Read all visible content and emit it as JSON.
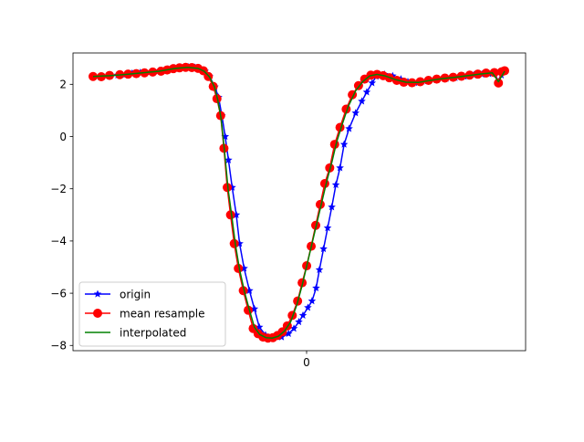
{
  "chart_data": {
    "type": "line",
    "x_tick_labels": [
      "0"
    ],
    "ylim": [
      -8.2,
      3.2
    ],
    "y_ticks": [
      2,
      0,
      -2,
      -4,
      -6,
      -8
    ],
    "legend_placement": "lower-left",
    "grid": false,
    "colors": {
      "origin": "#0000ff",
      "mean_resample": "#ff0000",
      "interpolated": "#008000"
    },
    "series": [
      {
        "name": "origin",
        "marker": "star",
        "points": [
          [
            0.0,
            2.3
          ],
          [
            0.018,
            2.28
          ],
          [
            0.041,
            2.32
          ],
          [
            0.06,
            2.35
          ],
          [
            0.08,
            2.38
          ],
          [
            0.095,
            2.42
          ],
          [
            0.115,
            2.45
          ],
          [
            0.14,
            2.48
          ],
          [
            0.16,
            2.52
          ],
          [
            0.182,
            2.58
          ],
          [
            0.198,
            2.62
          ],
          [
            0.215,
            2.64
          ],
          [
            0.232,
            2.66
          ],
          [
            0.248,
            2.64
          ],
          [
            0.26,
            2.6
          ],
          [
            0.272,
            2.5
          ],
          [
            0.283,
            2.3
          ],
          [
            0.296,
            1.9
          ],
          [
            0.305,
            1.5
          ],
          [
            0.313,
            0.8
          ],
          [
            0.321,
            0.0
          ],
          [
            0.329,
            -0.9
          ],
          [
            0.338,
            -1.95
          ],
          [
            0.348,
            -3.0
          ],
          [
            0.356,
            -4.1
          ],
          [
            0.367,
            -5.05
          ],
          [
            0.38,
            -5.9
          ],
          [
            0.392,
            -6.6
          ],
          [
            0.404,
            -7.3
          ],
          [
            0.419,
            -7.6
          ],
          [
            0.438,
            -7.72
          ],
          [
            0.458,
            -7.68
          ],
          [
            0.475,
            -7.55
          ],
          [
            0.488,
            -7.35
          ],
          [
            0.5,
            -7.1
          ],
          [
            0.51,
            -6.85
          ],
          [
            0.522,
            -6.55
          ],
          [
            0.532,
            -6.3
          ],
          [
            0.542,
            -5.8
          ],
          [
            0.55,
            -5.1
          ],
          [
            0.56,
            -4.3
          ],
          [
            0.57,
            -3.5
          ],
          [
            0.58,
            -2.7
          ],
          [
            0.59,
            -1.85
          ],
          [
            0.6,
            -1.2
          ],
          [
            0.61,
            -0.3
          ],
          [
            0.622,
            0.3
          ],
          [
            0.638,
            0.9
          ],
          [
            0.653,
            1.35
          ],
          [
            0.665,
            1.7
          ],
          [
            0.678,
            2.05
          ],
          [
            0.688,
            2.3
          ],
          [
            0.708,
            2.38
          ],
          [
            0.728,
            2.32
          ],
          [
            0.748,
            2.2
          ],
          [
            0.765,
            2.1
          ],
          [
            0.79,
            2.06
          ],
          [
            0.812,
            2.12
          ],
          [
            0.833,
            2.18
          ],
          [
            0.858,
            2.22
          ],
          [
            0.88,
            2.25
          ],
          [
            0.902,
            2.3
          ],
          [
            0.925,
            2.35
          ],
          [
            0.945,
            2.38
          ],
          [
            0.962,
            2.4
          ],
          [
            0.976,
            2.42
          ],
          [
            0.985,
            2.1
          ],
          [
            0.992,
            2.35
          ],
          [
            1.0,
            2.5
          ]
        ]
      },
      {
        "name": "mean resample",
        "marker": "circle",
        "points": [
          [
            0.0,
            2.3
          ],
          [
            0.02,
            2.29
          ],
          [
            0.04,
            2.34
          ],
          [
            0.065,
            2.37
          ],
          [
            0.085,
            2.39
          ],
          [
            0.105,
            2.41
          ],
          [
            0.125,
            2.44
          ],
          [
            0.145,
            2.47
          ],
          [
            0.165,
            2.5
          ],
          [
            0.18,
            2.55
          ],
          [
            0.195,
            2.6
          ],
          [
            0.21,
            2.63
          ],
          [
            0.225,
            2.65
          ],
          [
            0.24,
            2.64
          ],
          [
            0.255,
            2.61
          ],
          [
            0.268,
            2.52
          ],
          [
            0.28,
            2.3
          ],
          [
            0.292,
            1.92
          ],
          [
            0.301,
            1.45
          ],
          [
            0.31,
            0.8
          ],
          [
            0.318,
            -0.45
          ],
          [
            0.326,
            -1.95
          ],
          [
            0.334,
            -3.0
          ],
          [
            0.343,
            -4.1
          ],
          [
            0.353,
            -5.05
          ],
          [
            0.365,
            -5.9
          ],
          [
            0.377,
            -6.65
          ],
          [
            0.389,
            -7.35
          ],
          [
            0.401,
            -7.55
          ],
          [
            0.413,
            -7.68
          ],
          [
            0.425,
            -7.72
          ],
          [
            0.437,
            -7.7
          ],
          [
            0.448,
            -7.62
          ],
          [
            0.46,
            -7.48
          ],
          [
            0.472,
            -7.25
          ],
          [
            0.484,
            -6.85
          ],
          [
            0.497,
            -6.3
          ],
          [
            0.508,
            -5.6
          ],
          [
            0.519,
            -4.95
          ],
          [
            0.53,
            -4.2
          ],
          [
            0.541,
            -3.4
          ],
          [
            0.552,
            -2.6
          ],
          [
            0.563,
            -1.8
          ],
          [
            0.575,
            -1.2
          ],
          [
            0.587,
            -0.3
          ],
          [
            0.6,
            0.35
          ],
          [
            0.615,
            1.05
          ],
          [
            0.63,
            1.6
          ],
          [
            0.645,
            1.95
          ],
          [
            0.66,
            2.2
          ],
          [
            0.675,
            2.35
          ],
          [
            0.69,
            2.38
          ],
          [
            0.705,
            2.33
          ],
          [
            0.72,
            2.25
          ],
          [
            0.738,
            2.15
          ],
          [
            0.755,
            2.08
          ],
          [
            0.775,
            2.06
          ],
          [
            0.795,
            2.1
          ],
          [
            0.815,
            2.15
          ],
          [
            0.835,
            2.2
          ],
          [
            0.855,
            2.24
          ],
          [
            0.875,
            2.27
          ],
          [
            0.895,
            2.31
          ],
          [
            0.915,
            2.35
          ],
          [
            0.935,
            2.39
          ],
          [
            0.955,
            2.43
          ],
          [
            0.975,
            2.45
          ],
          [
            0.985,
            2.05
          ],
          [
            0.993,
            2.48
          ],
          [
            1.0,
            2.52
          ]
        ]
      },
      {
        "name": "interpolated",
        "marker": "none",
        "points": [
          [
            0.0,
            2.3
          ],
          [
            0.04,
            2.33
          ],
          [
            0.08,
            2.38
          ],
          [
            0.12,
            2.44
          ],
          [
            0.16,
            2.5
          ],
          [
            0.2,
            2.61
          ],
          [
            0.23,
            2.65
          ],
          [
            0.255,
            2.61
          ],
          [
            0.27,
            2.5
          ],
          [
            0.283,
            2.28
          ],
          [
            0.295,
            1.9
          ],
          [
            0.303,
            1.4
          ],
          [
            0.311,
            0.7
          ],
          [
            0.319,
            -0.5
          ],
          [
            0.328,
            -2.0
          ],
          [
            0.337,
            -3.05
          ],
          [
            0.346,
            -4.15
          ],
          [
            0.356,
            -5.1
          ],
          [
            0.368,
            -5.95
          ],
          [
            0.38,
            -6.65
          ],
          [
            0.392,
            -7.3
          ],
          [
            0.405,
            -7.58
          ],
          [
            0.42,
            -7.7
          ],
          [
            0.435,
            -7.72
          ],
          [
            0.45,
            -7.65
          ],
          [
            0.465,
            -7.45
          ],
          [
            0.48,
            -7.1
          ],
          [
            0.495,
            -6.45
          ],
          [
            0.508,
            -5.7
          ],
          [
            0.52,
            -4.9
          ],
          [
            0.532,
            -4.1
          ],
          [
            0.544,
            -3.3
          ],
          [
            0.556,
            -2.5
          ],
          [
            0.568,
            -1.7
          ],
          [
            0.58,
            -1.0
          ],
          [
            0.592,
            -0.2
          ],
          [
            0.605,
            0.45
          ],
          [
            0.62,
            1.15
          ],
          [
            0.638,
            1.75
          ],
          [
            0.655,
            2.1
          ],
          [
            0.672,
            2.32
          ],
          [
            0.69,
            2.38
          ],
          [
            0.71,
            2.32
          ],
          [
            0.735,
            2.18
          ],
          [
            0.76,
            2.08
          ],
          [
            0.79,
            2.07
          ],
          [
            0.82,
            2.15
          ],
          [
            0.85,
            2.22
          ],
          [
            0.88,
            2.27
          ],
          [
            0.91,
            2.33
          ],
          [
            0.94,
            2.39
          ],
          [
            0.97,
            2.44
          ],
          [
            0.985,
            2.1
          ],
          [
            1.0,
            2.5
          ]
        ]
      }
    ]
  }
}
